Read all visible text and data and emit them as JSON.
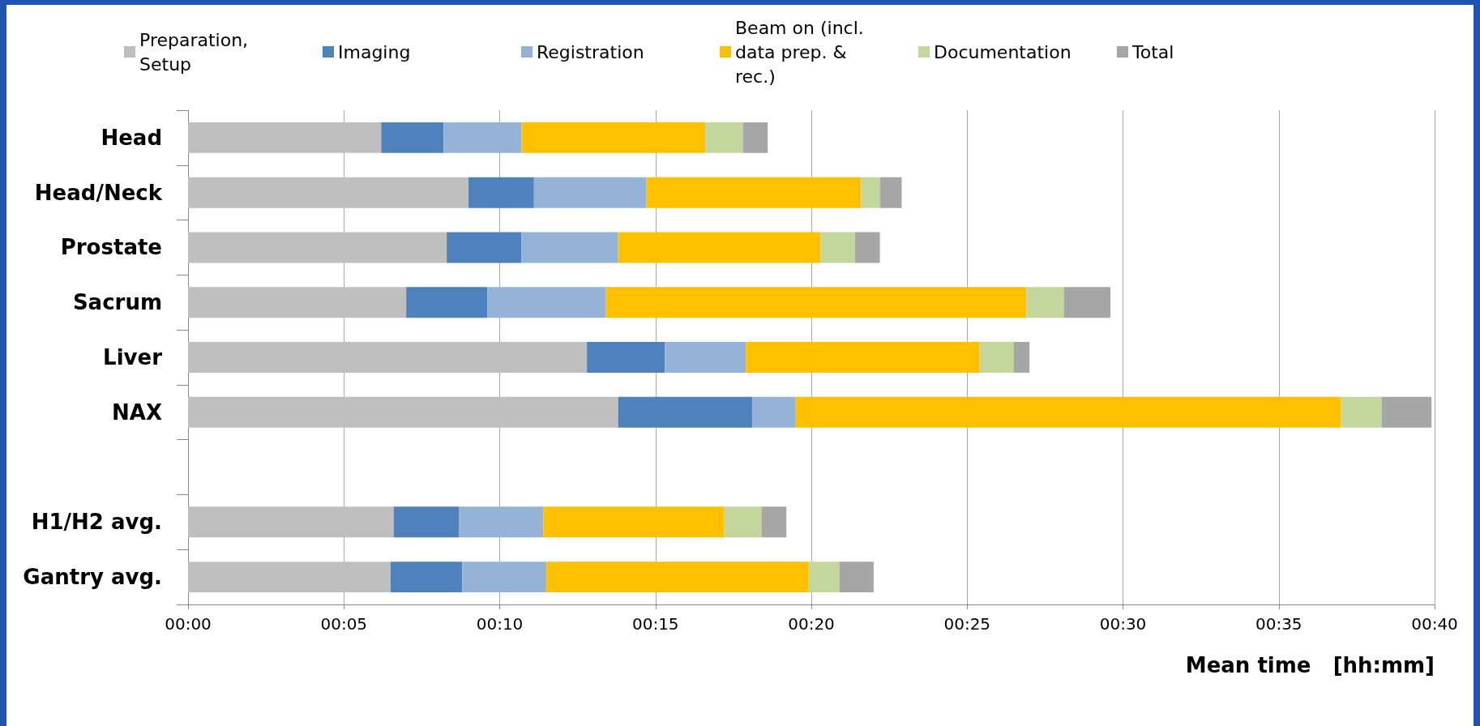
{
  "chart_data": {
    "type": "bar",
    "orientation": "horizontal",
    "stacked": true,
    "xlabel": "Mean time   [hh:mm]",
    "categories": [
      "Head",
      "Head/Neck",
      "Prostate",
      "Sacrum",
      "Liver",
      "NAX",
      null,
      "H1/H2 avg.",
      "Gantry avg."
    ],
    "series": [
      {
        "name": "Preparation, Setup",
        "color": "#bfbfbf",
        "values": [
          6.2,
          9.0,
          8.3,
          7.0,
          12.8,
          13.8,
          null,
          6.6,
          6.5
        ]
      },
      {
        "name": "Imaging",
        "color": "#4f81bd",
        "values": [
          2.0,
          2.1,
          2.4,
          2.6,
          2.5,
          4.3,
          null,
          2.1,
          2.3
        ]
      },
      {
        "name": "Registration",
        "color": "#95b3d7",
        "values": [
          2.5,
          3.6,
          3.1,
          3.8,
          2.6,
          1.4,
          null,
          2.7,
          2.7
        ]
      },
      {
        "name": "Beam on (incl. data prep. & rec.)",
        "color": "#ffc000",
        "values": [
          5.9,
          6.9,
          6.5,
          13.5,
          7.5,
          17.5,
          null,
          5.8,
          8.4
        ]
      },
      {
        "name": "Documentation",
        "color": "#c3d69b",
        "values": [
          1.2,
          0.6,
          1.1,
          1.2,
          1.1,
          1.3,
          null,
          1.2,
          1.0
        ]
      },
      {
        "name": "Total",
        "color": "#a6a6a6",
        "values": [
          0.8,
          0.7,
          0.8,
          1.5,
          0.5,
          1.6,
          null,
          0.8,
          1.1
        ]
      }
    ],
    "xlim": [
      0,
      40
    ],
    "xticks": [
      {
        "value": 0,
        "label": "00:00"
      },
      {
        "value": 5,
        "label": "00:05"
      },
      {
        "value": 10,
        "label": "00:10"
      },
      {
        "value": 15,
        "label": "00:15"
      },
      {
        "value": 20,
        "label": "00:20"
      },
      {
        "value": 25,
        "label": "00:25"
      },
      {
        "value": 30,
        "label": "00:30"
      },
      {
        "value": 35,
        "label": "00:35"
      },
      {
        "value": 40,
        "label": "00:40"
      }
    ],
    "grid": "x",
    "legend": "top"
  }
}
